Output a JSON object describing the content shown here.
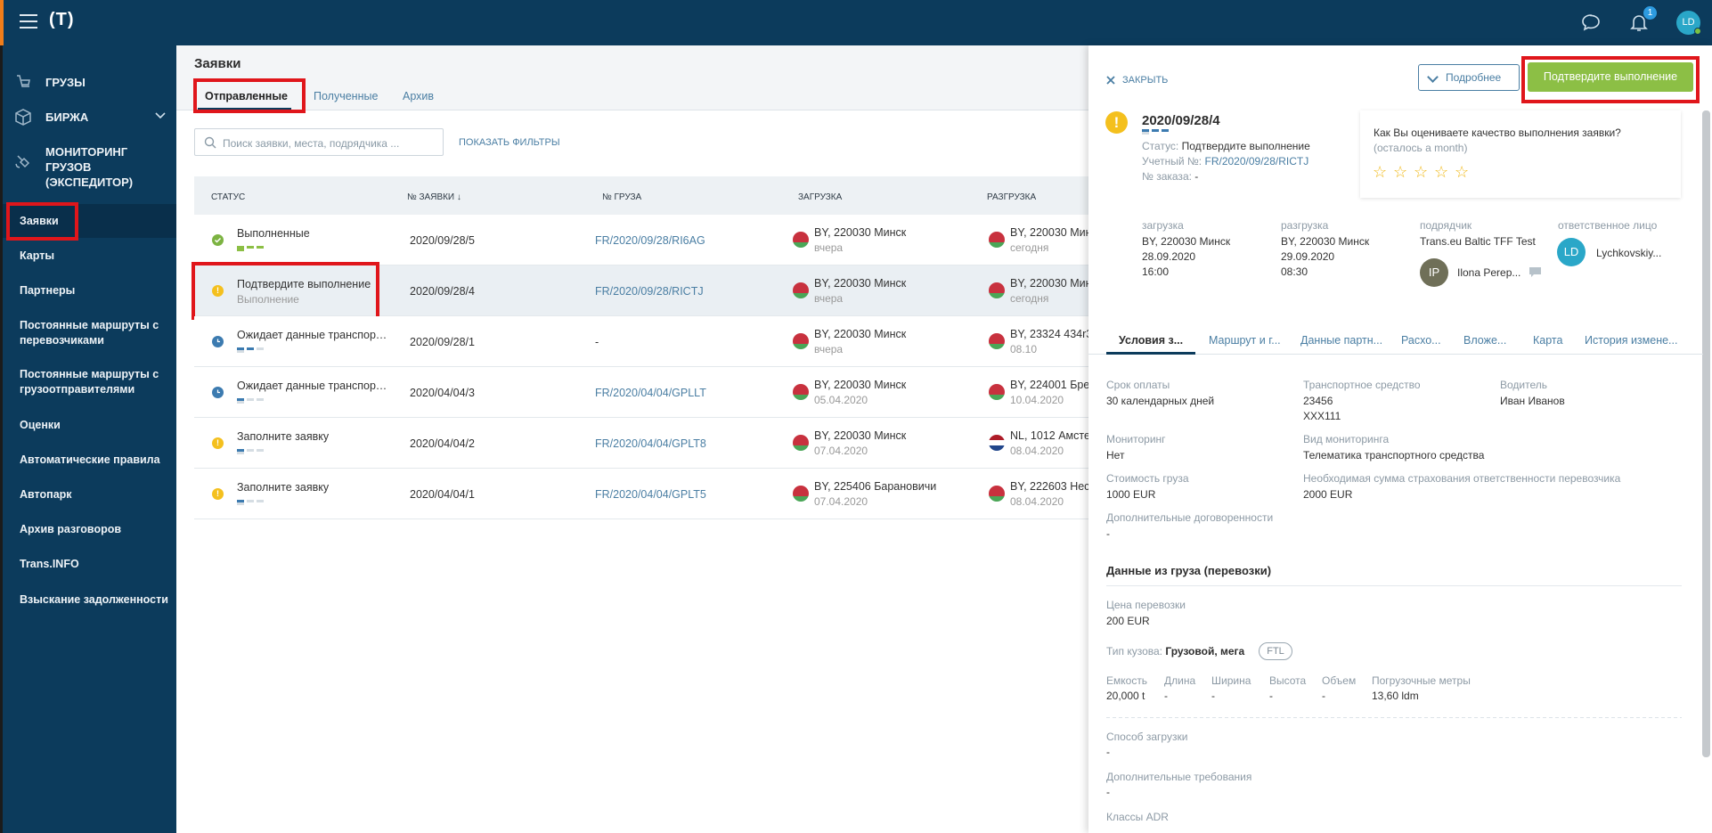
{
  "topbar": {
    "logo": "(T)",
    "notifications_count": "1",
    "user_initials": "LD"
  },
  "sidebar": {
    "main_items": [
      {
        "label": "ГРУЗЫ"
      },
      {
        "label": "БИРЖА"
      },
      {
        "label": "МОНИТОРИНГ ГРУЗОВ (ЭКСПЕДИТОР)"
      }
    ],
    "items": [
      {
        "label": "Заявки"
      },
      {
        "label": "Карты"
      },
      {
        "label": "Партнеры"
      },
      {
        "label": "Постоянные маршруты с перевозчиками"
      },
      {
        "label": "Постоянные маршруты с грузоотправителями"
      },
      {
        "label": "Оценки"
      },
      {
        "label": "Автоматические правила"
      },
      {
        "label": "Автопарк"
      },
      {
        "label": "Архив разговоров"
      },
      {
        "label": "Trans.INFO"
      },
      {
        "label": "Взыскание задолженности"
      }
    ]
  },
  "main": {
    "title": "Заявки",
    "tabs": [
      "Отправленные",
      "Полученные",
      "Архив"
    ],
    "search_placeholder": "Поиск заявки, места, подрядчика ...",
    "show_filters": "ПОКАЗАТЬ ФИЛЬТРЫ",
    "columns": [
      "СТАТУС",
      "№ ЗАЯВКИ ↓",
      "№ ГРУЗА",
      "ЗАГРУЗКА",
      "РАЗГРУЗКА"
    ],
    "rows": [
      {
        "status": "Выполненные",
        "status_sub": "",
        "number": "2020/09/28/5",
        "cargo": "FR/2020/09/28/RI6AG",
        "load": "BY, 220030 Минск",
        "load_date": "вчера",
        "unload": "BY, 220030 Мин",
        "unload_date": "сегодня",
        "unload_flag": "by"
      },
      {
        "status": "Подтвердите выполнение",
        "status_sub": "Выполнение",
        "number": "2020/09/28/4",
        "cargo": "FR/2020/09/28/RICTJ",
        "load": "BY, 220030 Минск",
        "load_date": "вчера",
        "unload": "BY, 220030 Мин",
        "unload_date": "сегодня",
        "unload_flag": "by"
      },
      {
        "status": "Ожидает данные транспортн...",
        "status_sub": "",
        "number": "2020/09/28/1",
        "cargo": "-",
        "load": "BY, 220030 Минск",
        "load_date": "вчера",
        "unload": "BY, 23324 434r3",
        "unload_date": "08.10",
        "unload_flag": "by"
      },
      {
        "status": "Ожидает данные транспортн...",
        "status_sub": "",
        "number": "2020/04/04/3",
        "cargo": "FR/2020/04/04/GPLLT",
        "load": "BY, 220030 Минск",
        "load_date": "05.04.2020",
        "unload": "BY, 224001 Брес",
        "unload_date": "10.04.2020",
        "unload_flag": "by"
      },
      {
        "status": "Заполните заявку",
        "status_sub": "",
        "number": "2020/04/04/2",
        "cargo": "FR/2020/04/04/GPLT8",
        "load": "BY, 220030 Минск",
        "load_date": "07.04.2020",
        "unload": "NL, 1012 Амстер",
        "unload_date": "08.04.2020",
        "unload_flag": "nl"
      },
      {
        "status": "Заполните заявку",
        "status_sub": "",
        "number": "2020/04/04/1",
        "cargo": "FR/2020/04/04/GPLT5",
        "load": "BY, 225406 Барановичи",
        "load_date": "07.04.2020",
        "unload": "BY, 222603 Несв",
        "unload_date": "08.04.2020",
        "unload_flag": "by"
      }
    ]
  },
  "panel": {
    "close": "ЗАКРЫТЬ",
    "more_button": "Подробнее",
    "confirm_button": "Подтвердите выполнение",
    "order_number": "2020/09/28/4",
    "status_label": "Статус:",
    "status_value": "Подтвердите выполнение",
    "account_label": "Учетный №:",
    "account_value": "FR/2020/09/28/RICTJ",
    "order_label": "№ заказа:",
    "order_value": "-",
    "rating_question": "Как Вы оцениваете качество выполнения заявки?",
    "rating_remaining": "(осталось a month)",
    "load_label": "загрузка",
    "load_place": "BY, 220030 Минск",
    "load_date": "28.09.2020",
    "load_time": "16:00",
    "unload_label": "разгрузка",
    "unload_place": "BY, 220030 Минск",
    "unload_date": "29.09.2020",
    "unload_time": "08:30",
    "contractor_label": "подрядчик",
    "contractor_value": "Trans.eu Baltic TFF Test",
    "contractor_person_initials": "IP",
    "contractor_person": "Ilona Pereр...",
    "responsible_label": "ответственное лицо",
    "responsible_initials": "LD",
    "responsible_name": "Lychkovskiy...",
    "tabs": [
      "Условия з...",
      "Маршрут и г...",
      "Данные партн...",
      "Расхо...",
      "Вложе...",
      "Карта",
      "История измене..."
    ],
    "payment_label": "Срок оплаты",
    "payment_value": "30 календарных дней",
    "vehicle_label": "Транспортное средство",
    "vehicle_value1": "23456",
    "vehicle_value2": "XXX111",
    "driver_label": "Водитель",
    "driver_value": "Иван Иванов",
    "monitoring_label": "Мониторинг",
    "monitoring_value": "Нет",
    "monitoring_type_label": "Вид мониторинга",
    "monitoring_type_value": "Телематика транспортного средства",
    "cargo_cost_label": "Стоимость груза",
    "cargo_cost_value": "1000 EUR",
    "insurance_label": "Необходимая сумма страхования ответственности перевозчика",
    "insurance_value": "2000 EUR",
    "extra_agreements_label": "Дополнительные договоренности",
    "extra_agreements_value": "-",
    "section_title": "Данные из груза (перевозки)",
    "price_label": "Цена перевозки",
    "price_value": "200 EUR",
    "body_type_label": "Тип кузова:",
    "body_type_value": "Грузовой, мега",
    "ftl": "FTL",
    "capacity_label": "Емкость",
    "capacity_value": "20,000 t",
    "length_label": "Длина",
    "length_value": "-",
    "width_label": "Ширина",
    "width_value": "-",
    "height_label": "Высота",
    "height_value": "-",
    "volume_label": "Объем",
    "volume_value": "-",
    "ldm_label": "Погрузочные метры",
    "ldm_value": "13,60 ldm",
    "loading_method_label": "Способ загрузки",
    "loading_method_value": "-",
    "extra_req_label": "Дополнительные требования",
    "extra_req_value": "-",
    "adr_label": "Классы ADR"
  },
  "colors": {
    "brand": "#0c3b5c",
    "accent_green": "#8cbf45",
    "link": "#4a7ea3",
    "highlight_red": "#e0161b",
    "warning": "#f4c01e"
  }
}
